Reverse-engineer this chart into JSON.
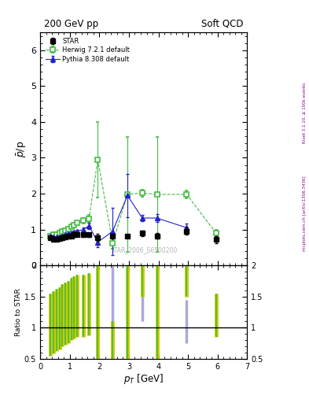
{
  "title_left": "200 GeV pp",
  "title_right": "Soft QCD",
  "ylabel_main": "$\\bar{p}$/p",
  "ylabel_ratio": "Ratio to STAR",
  "xlabel": "$p_T$ [GeV]",
  "right_label_top": "Rivet 3.1.10, ≥ 100k events",
  "right_label_bottom": "mcplots.cern.ch [arXiv:1306.3436]",
  "watermark": "STAR_2006_S6500200",
  "star_x": [
    0.35,
    0.45,
    0.55,
    0.65,
    0.75,
    0.85,
    0.95,
    1.05,
    1.15,
    1.25,
    1.45,
    1.65,
    1.95,
    2.45,
    2.95,
    3.45,
    3.95,
    4.95,
    5.95
  ],
  "star_y": [
    0.78,
    0.72,
    0.72,
    0.76,
    0.78,
    0.8,
    0.82,
    0.82,
    0.85,
    0.85,
    0.85,
    0.85,
    0.78,
    0.82,
    0.82,
    0.9,
    0.82,
    0.95,
    0.72
  ],
  "star_yerr": [
    0.05,
    0.04,
    0.04,
    0.04,
    0.04,
    0.04,
    0.04,
    0.04,
    0.04,
    0.04,
    0.05,
    0.05,
    0.1,
    0.05,
    0.05,
    0.08,
    0.08,
    0.1,
    0.1
  ],
  "herwig_x": [
    0.35,
    0.45,
    0.55,
    0.65,
    0.75,
    0.85,
    0.95,
    1.05,
    1.15,
    1.25,
    1.45,
    1.65,
    1.95,
    2.45,
    2.95,
    3.45,
    3.95,
    4.95,
    5.95
  ],
  "herwig_y": [
    0.82,
    0.85,
    0.87,
    0.9,
    0.95,
    0.98,
    1.02,
    1.08,
    1.12,
    1.18,
    1.25,
    1.3,
    2.95,
    0.62,
    1.98,
    2.02,
    1.98,
    1.98,
    0.9
  ],
  "herwig_yerr": [
    0.05,
    0.05,
    0.05,
    0.05,
    0.05,
    0.05,
    0.05,
    0.05,
    0.06,
    0.06,
    0.08,
    0.1,
    1.05,
    0.15,
    1.6,
    0.1,
    1.6,
    0.1,
    0.1
  ],
  "pythia_x": [
    0.35,
    0.45,
    0.55,
    0.65,
    0.75,
    0.85,
    0.95,
    1.05,
    1.15,
    1.25,
    1.45,
    1.65,
    1.95,
    2.45,
    2.95,
    3.45,
    3.95,
    4.95
  ],
  "pythia_y": [
    0.82,
    0.8,
    0.8,
    0.8,
    0.82,
    0.85,
    0.88,
    0.9,
    0.92,
    0.95,
    1.0,
    1.1,
    0.65,
    0.95,
    1.95,
    1.32,
    1.32,
    1.05
  ],
  "pythia_yerr": [
    0.04,
    0.04,
    0.04,
    0.04,
    0.04,
    0.04,
    0.04,
    0.04,
    0.04,
    0.04,
    0.05,
    0.08,
    0.15,
    0.65,
    0.6,
    0.08,
    0.1,
    0.12
  ],
  "herwig_ratio_x": [
    0.35,
    0.45,
    0.55,
    0.65,
    0.75,
    0.85,
    0.95,
    1.05,
    1.15,
    1.25,
    1.45,
    1.65,
    1.95,
    2.45,
    2.95,
    3.45,
    3.95,
    4.95,
    5.95
  ],
  "herwig_ratio_lo": [
    0.55,
    0.58,
    0.62,
    0.65,
    0.7,
    0.72,
    0.75,
    0.8,
    0.82,
    0.85,
    0.85,
    0.88,
    0.5,
    0.5,
    0.5,
    1.5,
    0.5,
    1.5,
    0.85
  ],
  "herwig_ratio_hi": [
    1.55,
    1.58,
    1.62,
    1.65,
    1.7,
    1.72,
    1.75,
    1.8,
    1.82,
    1.85,
    1.85,
    1.88,
    2.0,
    1.1,
    2.0,
    2.0,
    2.0,
    2.0,
    1.55
  ],
  "pythia_ratio_x": [
    0.35,
    0.45,
    0.55,
    0.65,
    0.75,
    0.85,
    0.95,
    1.05,
    1.15,
    1.25,
    1.45,
    1.65,
    1.95,
    2.45,
    2.95,
    3.45,
    3.95,
    4.95
  ],
  "pythia_ratio_lo": [
    0.65,
    0.68,
    0.7,
    0.72,
    0.75,
    0.78,
    0.8,
    0.82,
    0.85,
    0.88,
    0.9,
    0.95,
    0.6,
    0.5,
    1.0,
    1.1,
    1.1,
    0.75
  ],
  "pythia_ratio_hi": [
    1.5,
    1.52,
    1.55,
    1.5,
    1.48,
    1.45,
    1.42,
    1.4,
    1.38,
    1.35,
    1.35,
    1.6,
    1.1,
    2.0,
    2.0,
    1.8,
    1.8,
    1.45
  ],
  "xlim": [
    0.0,
    7.0
  ],
  "ylim_main": [
    0.0,
    6.5
  ],
  "ylim_ratio": [
    0.5,
    2.0
  ],
  "yticks_main": [
    0,
    1,
    2,
    3,
    4,
    5,
    6
  ],
  "yticks_ratio": [
    0.5,
    1.0,
    1.5,
    2.0
  ],
  "star_color": "#000000",
  "herwig_color": "#44bb44",
  "pythia_color": "#2222cc",
  "herwig_ratio_color_outer": "#cccc00",
  "herwig_ratio_color_inner": "#44bb44",
  "pythia_ratio_color": "#aaaadd"
}
